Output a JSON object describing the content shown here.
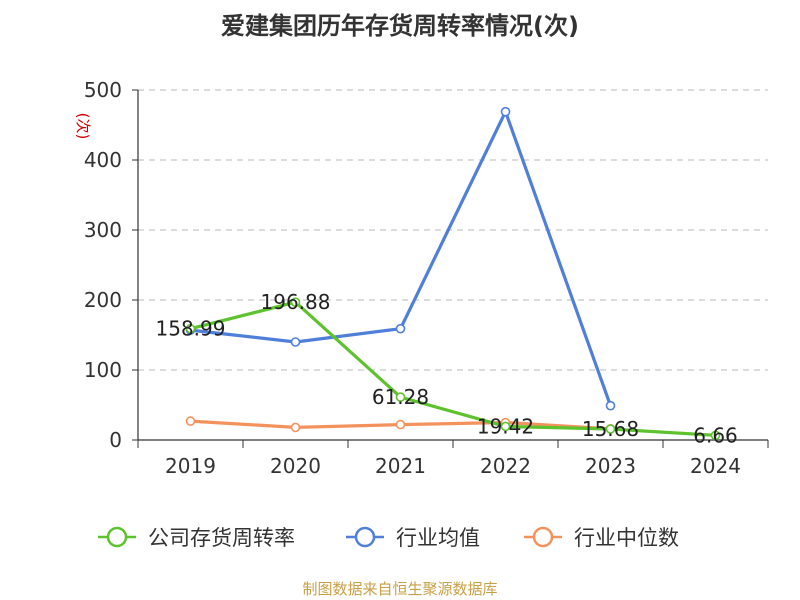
{
  "title": "爱建集团历年存货周转率情况(次)",
  "source": "制图数据来自恒生聚源数据库",
  "chart_data": {
    "type": "line",
    "title": "爱建集团历年存货周转率情况(次)",
    "ylabel": "(次)",
    "xlabel": "",
    "ylim": [
      0,
      500
    ],
    "yticks": [
      0,
      100,
      200,
      300,
      400,
      500
    ],
    "grid": true,
    "legend_position": "bottom",
    "categories": [
      "2019",
      "2020",
      "2021",
      "2022",
      "2023",
      "2024"
    ],
    "series": [
      {
        "name": "公司存货周转率",
        "color": "#5ec22e",
        "values": [
          158.99,
          196.88,
          61.28,
          19.42,
          15.68,
          6.66
        ],
        "labels": [
          "158.99",
          "196.88",
          "61.28",
          "19.42",
          "15.68",
          "6.66"
        ]
      },
      {
        "name": "行业均值",
        "color": "#4f7fd9",
        "values": [
          157,
          140,
          159,
          469,
          49,
          null
        ]
      },
      {
        "name": "行业中位数",
        "color": "#f4925d",
        "values": [
          27,
          18,
          22,
          25,
          16,
          null
        ]
      }
    ]
  }
}
